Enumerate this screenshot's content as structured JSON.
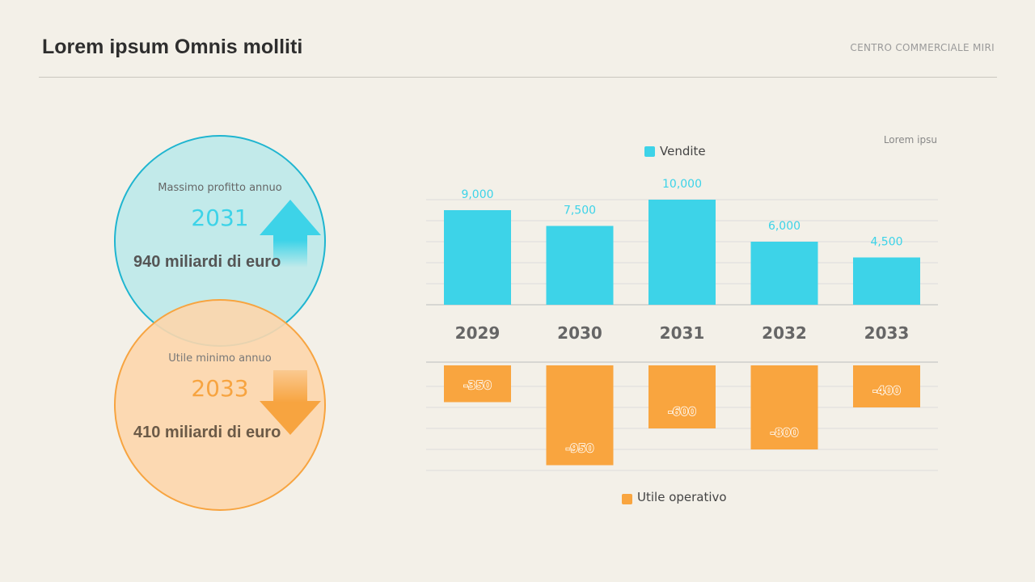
{
  "header": {
    "title": "Lorem ipsum Omnis molliti",
    "brand": "CENTRO COMMERCIALE MIRI"
  },
  "cards": [
    {
      "label": "Massimo profitto annuo",
      "year": "2031",
      "value": "940 miliardi di euro",
      "icon": "arrow-up-icon",
      "color": "#3dd3e8"
    },
    {
      "label": "Utile minimo annuo",
      "year": "2033",
      "value": "410 miliardi di euro",
      "icon": "arrow-down-icon",
      "color": "#f7a440"
    }
  ],
  "chart_data": {
    "type": "bar",
    "note": "Lorem ipsu",
    "categories": [
      "2029",
      "2030",
      "2031",
      "2032",
      "2033"
    ],
    "series": [
      {
        "name": "Vendite",
        "values": [
          9000,
          7500,
          10000,
          6000,
          4500
        ],
        "labels": [
          "9,000",
          "7,500",
          "10,000",
          "6,000",
          "4,500"
        ],
        "color": "#3dd3e8",
        "ylim": [
          0,
          10000
        ]
      },
      {
        "name": "Utile operativo",
        "values": [
          -350,
          -950,
          -600,
          -800,
          -400
        ],
        "labels": [
          "-350",
          "-950",
          "-600",
          "-800",
          "-400"
        ],
        "color": "#f9a53f",
        "ylim": [
          -1000,
          0
        ]
      }
    ],
    "grid": true,
    "legend": "top / bottom"
  }
}
